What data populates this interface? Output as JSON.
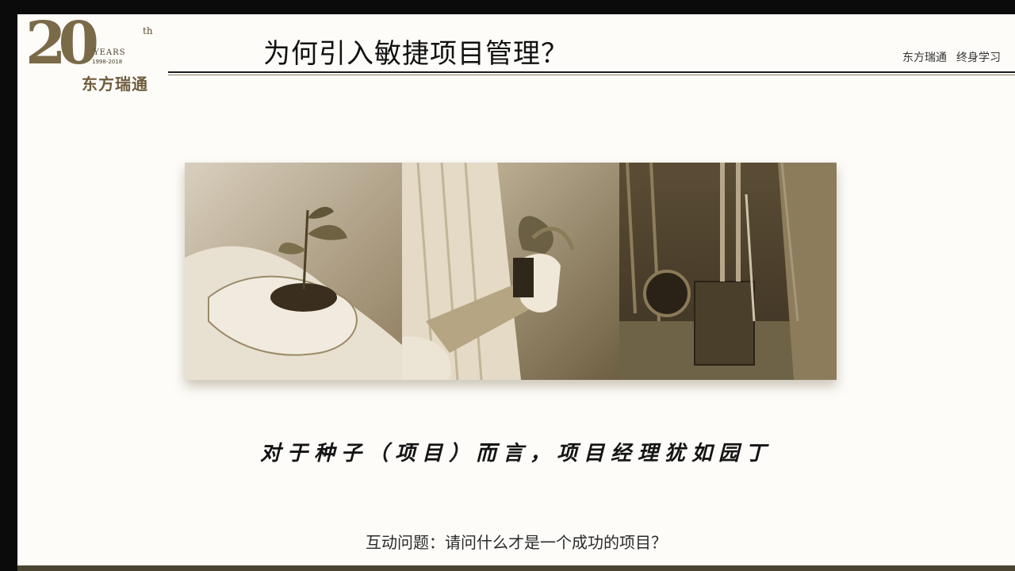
{
  "header": {
    "title": "为何引入敏捷项目管理？",
    "brand_name": "东方瑞通",
    "brand_slogan": "终身学习"
  },
  "logo": {
    "number": "20",
    "superscript": "th",
    "years_label": "YEARS",
    "year_range": "1998-2018",
    "company": "东方瑞通",
    "icon": "anniversary-logo-icon"
  },
  "photos": [
    {
      "icon": "seedling-in-hands-photo"
    },
    {
      "icon": "watering-plant-photo"
    },
    {
      "icon": "garden-tools-photo"
    }
  ],
  "caption": "对于种子（项目）而言，项目经理犹如园丁",
  "question": "互动问题：请问什么才是一个成功的项目？",
  "colors": {
    "sepia": "#8a7654",
    "background": "#fdfcf9",
    "frame": "#0b0b0b"
  }
}
